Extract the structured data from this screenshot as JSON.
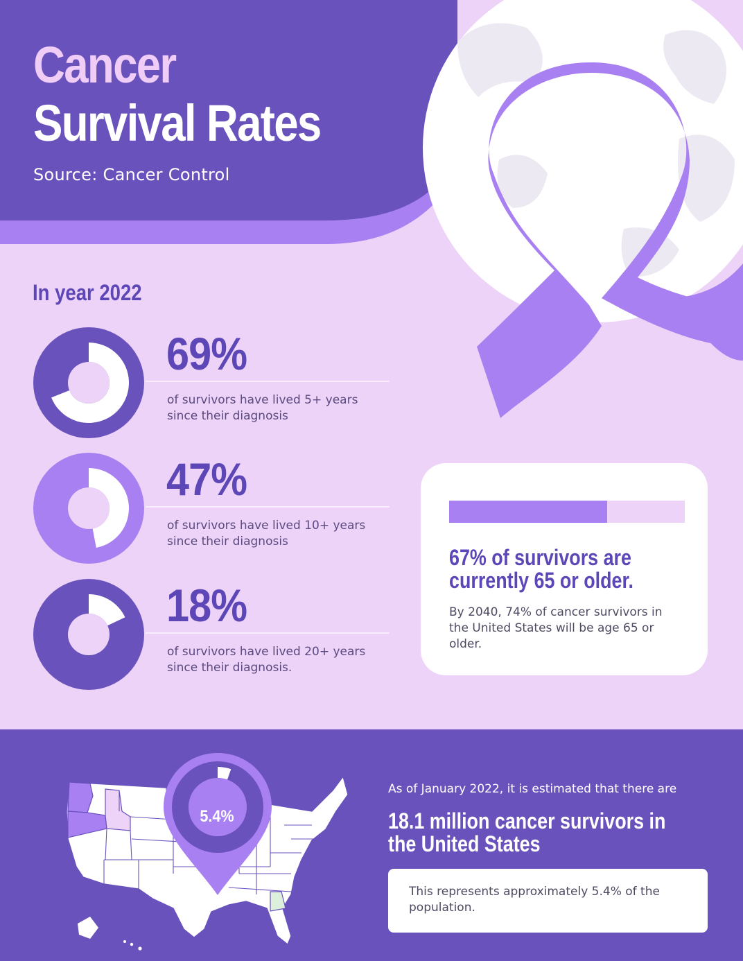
{
  "header": {
    "title_line1": "Cancer",
    "title_line2": "Survival Rates",
    "source": "Source: Cancer Control"
  },
  "year_label": "In year 2022",
  "stats": [
    {
      "percent": "69%",
      "value": 69,
      "description": "of survivors have lived 5+ years since their diagnosis"
    },
    {
      "percent": "47%",
      "value": 47,
      "description": "of survivors have lived 10+ years since their diagnosis"
    },
    {
      "percent": "18%",
      "value": 18,
      "description": "of survivors have lived 20+ years since their diagnosis."
    }
  ],
  "card": {
    "progress_value": 67,
    "headline": "67% of survivors are currently 65 or older.",
    "body": "By 2040, 74% of cancer survivors in the United States will be age 65 or older."
  },
  "footer": {
    "pin_label": "5.4%",
    "pin_value": 5.4,
    "as_of": "As of January 2022, it is estimated that there are",
    "headline": "18.1 million cancer survivors in the United States",
    "note": "This represents approximately 5.4% of the population."
  },
  "colors": {
    "dark_purple": "#6a52bd",
    "title_purple": "#5d47b7",
    "light_purple": "#a980f2",
    "lavender": "#ecd3f7",
    "white": "#ffffff"
  }
}
